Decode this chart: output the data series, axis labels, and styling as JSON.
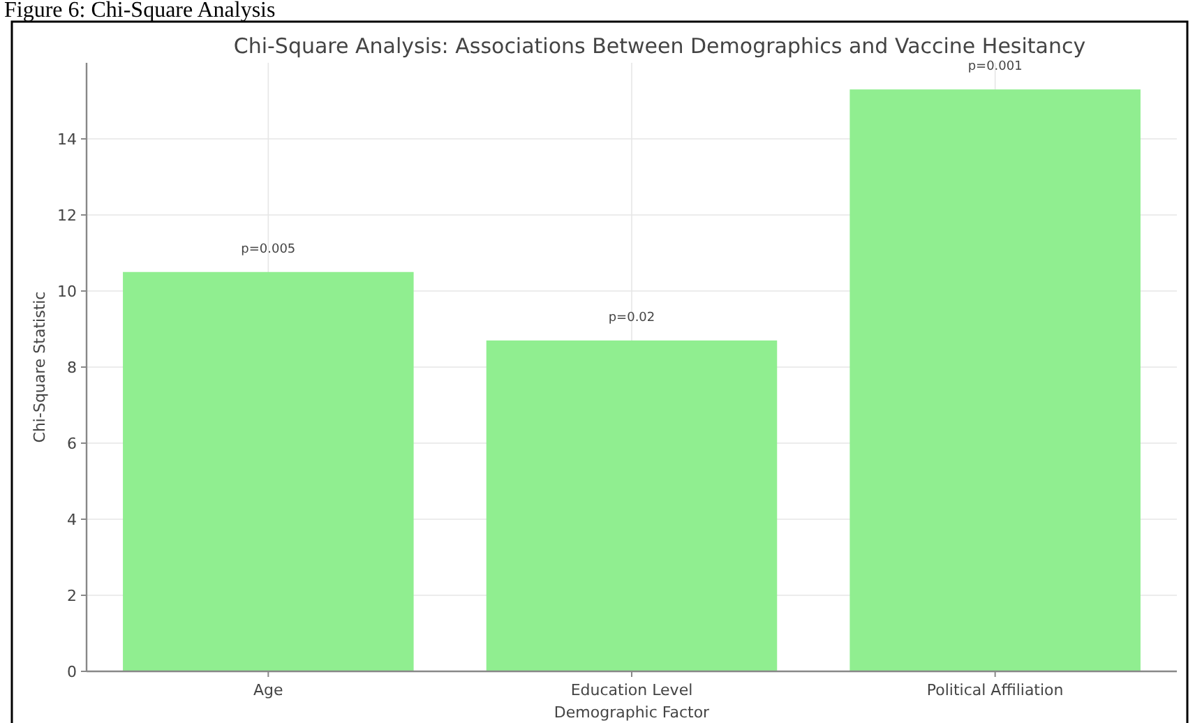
{
  "chart_data": {
    "type": "bar",
    "title": "Chi-Square Analysis: Associations Between Demographics and Vaccine Hesitancy",
    "annotations": [
      "Figure 6: Chi-Square Analysis",
      {
        "text": "p=0.005",
        "x": "Age",
        "y": 10.5
      },
      {
        "text": "p=0.02",
        "x": "Education Level",
        "y": 8.7
      },
      {
        "text": "p=0.001",
        "x": "Political Affiliation",
        "y": 15.3
      }
    ],
    "xlabel": "Demographic Factor",
    "ylabel": "Chi-Square Statistic",
    "categories": [
      "Age",
      "Education Level",
      "Political Affiliation"
    ],
    "values": [
      10.5,
      8.7,
      15.3
    ],
    "color": "#90ee90",
    "ylim": [
      0,
      16
    ],
    "yticks": [
      0,
      2,
      4,
      6,
      8,
      10,
      12,
      14
    ],
    "grid": true
  }
}
